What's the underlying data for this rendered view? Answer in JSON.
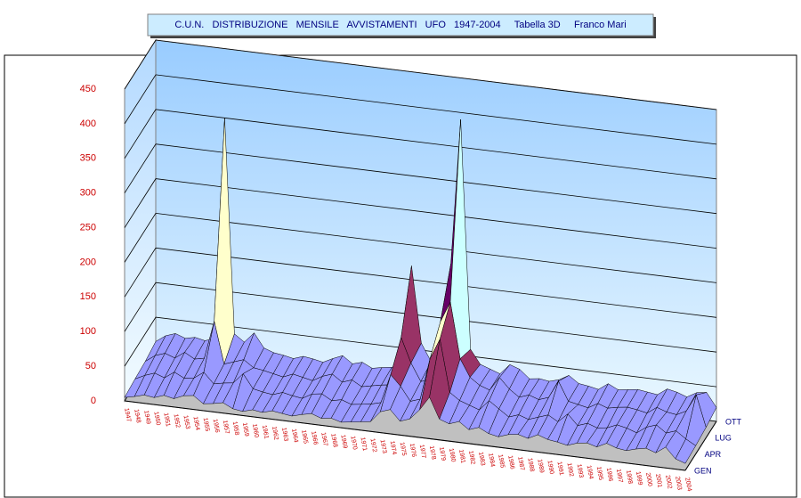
{
  "chart_data": {
    "type": "surface3d",
    "title": "C.U.N.   DISTRIBUZIONE   MENSILE   AVVISTAMENTI   UFO   1947-2004     Tabella 3D     Franco Mari",
    "categories": [
      "1947",
      "1948",
      "1949",
      "1950",
      "1951",
      "1952",
      "1953",
      "1954",
      "1955",
      "1956",
      "1957",
      "1958",
      "1959",
      "1960",
      "1961",
      "1962",
      "1963",
      "1964",
      "1965",
      "1966",
      "1967",
      "1968",
      "1969",
      "1970",
      "1971",
      "1972",
      "1973",
      "1974",
      "1975",
      "1976",
      "1977",
      "1978",
      "1979",
      "1980",
      "1981",
      "1982",
      "1983",
      "1984",
      "1985",
      "1986",
      "1987",
      "1988",
      "1989",
      "1990",
      "1991",
      "1992",
      "1993",
      "1994",
      "1995",
      "1996",
      "1997",
      "1998",
      "1999",
      "2000",
      "2001",
      "2002",
      "2003",
      "2004"
    ],
    "series": [
      {
        "name": "GEN",
        "values": [
          5,
          8,
          12,
          10,
          15,
          12,
          18,
          20,
          10,
          12,
          15,
          8,
          6,
          10,
          8,
          12,
          10,
          8,
          12,
          15,
          10,
          12,
          8,
          10,
          12,
          14,
          30,
          35,
          20,
          25,
          40,
          60,
          30,
          25,
          30,
          20,
          25,
          18,
          15,
          20,
          22,
          18,
          25,
          20,
          18,
          15,
          20,
          22,
          18,
          25,
          20,
          18,
          22,
          25,
          20,
          30,
          15,
          10
        ]
      },
      {
        "name": "APR",
        "values": [
          8,
          15,
          20,
          15,
          25,
          18,
          20,
          30,
          15,
          18,
          20,
          35,
          15,
          12,
          10,
          15,
          12,
          10,
          18,
          20,
          12,
          15,
          10,
          12,
          14,
          18,
          60,
          45,
          25,
          30,
          90,
          120,
          45,
          35,
          30,
          25,
          40,
          30,
          20,
          25,
          20,
          25,
          30,
          22,
          35,
          20,
          25,
          20,
          22,
          28,
          25,
          20,
          30,
          35,
          25,
          30,
          20,
          12
        ]
      },
      {
        "name": "LUG",
        "values": [
          10,
          20,
          25,
          20,
          30,
          22,
          25,
          80,
          20,
          25,
          30,
          20,
          18,
          15,
          12,
          18,
          15,
          12,
          20,
          25,
          15,
          20,
          12,
          15,
          18,
          20,
          90,
          55,
          30,
          35,
          120,
          150,
          70,
          45,
          35,
          30,
          50,
          35,
          25,
          30,
          25,
          30,
          55,
          28,
          25,
          22,
          30,
          25,
          28,
          30,
          28,
          25,
          35,
          30,
          28,
          35,
          60,
          15
        ]
      },
      {
        "name": "OTT",
        "values": [
          15,
          25,
          30,
          25,
          28,
          25,
          30,
          350,
          40,
          30,
          45,
          25,
          20,
          18,
          15,
          20,
          18,
          15,
          22,
          28,
          18,
          22,
          15,
          18,
          20,
          25,
          170,
          60,
          35,
          40,
          180,
          390,
          60,
          40,
          35,
          30,
          45,
          40,
          28,
          30,
          28,
          32,
          40,
          30,
          28,
          25,
          35,
          28,
          30,
          32,
          30,
          28,
          38,
          35,
          30,
          38,
          40,
          20
        ]
      }
    ],
    "ylim": [
      0,
      450
    ],
    "yticks": [
      0,
      50,
      100,
      150,
      200,
      250,
      300,
      350,
      400,
      450
    ],
    "grid": true,
    "band_colors": [
      "#9999ff",
      "#993366",
      "#ffffcc",
      "#ccffff",
      "#660066",
      "#ff8080",
      "#0066cc",
      "#ccccff",
      "#000080"
    ]
  }
}
